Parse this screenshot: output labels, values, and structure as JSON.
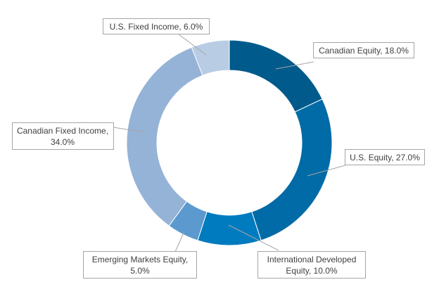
{
  "chart_data": {
    "type": "pie",
    "variant": "donut",
    "title": "",
    "slices": [
      {
        "label": "Canadian Equity",
        "value": 18.0,
        "color": "#005a8c",
        "label_text": "Canadian Equity, 18.0%"
      },
      {
        "label": "U.S. Equity",
        "value": 27.0,
        "color": "#006ba6",
        "label_text": "U.S. Equity, 27.0%"
      },
      {
        "label": "International Developed Equity",
        "value": 10.0,
        "color": "#007bbf",
        "label_lines": [
          "International Developed",
          "Equity, 10.0%"
        ]
      },
      {
        "label": "Emerging Markets Equity",
        "value": 5.0,
        "color": "#5b99cf",
        "label_lines": [
          "Emerging Markets Equity,",
          "5.0%"
        ]
      },
      {
        "label": "Canadian Fixed Income",
        "value": 34.0,
        "color": "#95b3d7",
        "label_lines": [
          "Canadian Fixed Income,",
          "34.0%"
        ]
      },
      {
        "label": "U.S. Fixed Income",
        "value": 6.0,
        "color": "#b8cce4",
        "label_text": "U.S. Fixed Income, 6.0%"
      }
    ]
  }
}
